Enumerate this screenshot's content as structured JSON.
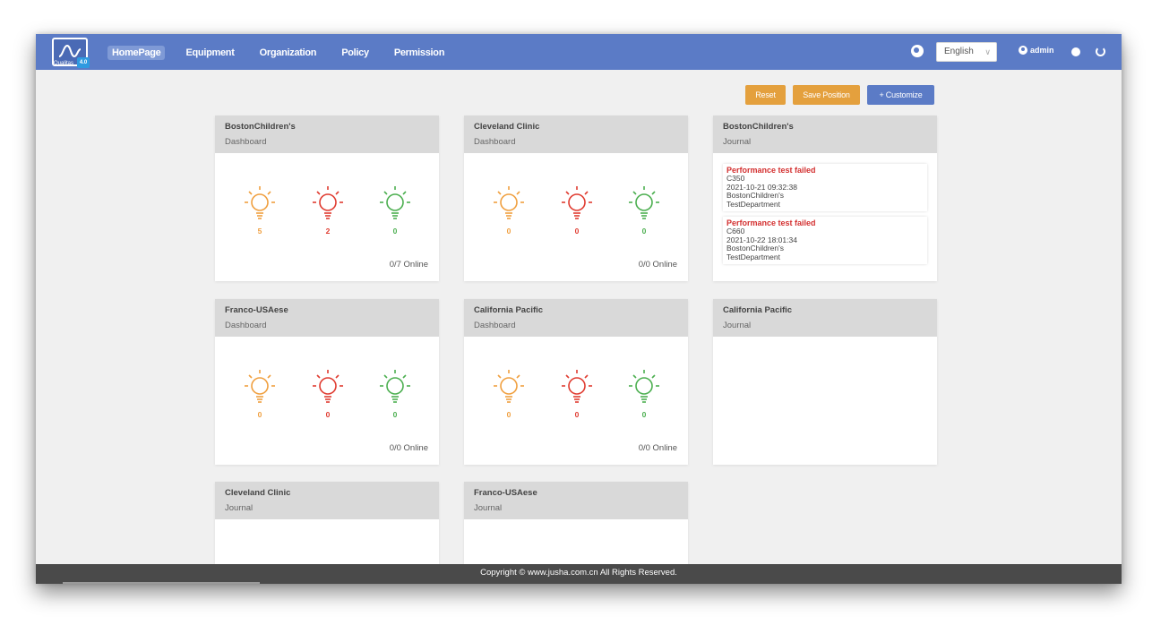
{
  "app": {
    "logo_text": "Qualitas",
    "logo_badge": "4.0"
  },
  "nav": {
    "items": [
      "HomePage",
      "Equipment",
      "Organization",
      "Policy",
      "Permission"
    ],
    "active_index": 0
  },
  "header": {
    "language": "English",
    "user": "admin",
    "icons": [
      "globe-icon",
      "user-icon",
      "gear-icon",
      "power-icon"
    ]
  },
  "toolbar": {
    "reset": "Reset",
    "save_position": "Save Position",
    "customize": "+ Customize"
  },
  "colors": {
    "brand": "#5b7bc6",
    "warning": "#e4a03d",
    "bulb_orange": "#f0a040",
    "bulb_red": "#e03c31",
    "bulb_green": "#4caf50",
    "journal_alert": "#d32f2f"
  },
  "cards": {
    "c1": {
      "title": "BostonChildren's",
      "sub": "Dashboard",
      "counts": [
        "5",
        "2",
        "0"
      ],
      "online": "0/7 Online"
    },
    "c2": {
      "title": "Cleveland Clinic",
      "sub": "Dashboard",
      "counts": [
        "0",
        "0",
        "0"
      ],
      "online": "0/0 Online"
    },
    "c3": {
      "title": "BostonChildren's",
      "sub": "Journal",
      "entries": [
        {
          "title": "Performance test failed",
          "device": "C350",
          "time": "2021-10-21 09:32:38",
          "org": "BostonChildren's",
          "dept": "TestDepartment"
        },
        {
          "title": "Performance test failed",
          "device": "C660",
          "time": "2021-10-22 18:01:34",
          "org": "BostonChildren's",
          "dept": "TestDepartment"
        }
      ]
    },
    "c4": {
      "title": "Franco-USAese",
      "sub": "Dashboard",
      "counts": [
        "0",
        "0",
        "0"
      ],
      "online": "0/0 Online"
    },
    "c5": {
      "title": "California Pacific",
      "sub": "Dashboard",
      "counts": [
        "0",
        "0",
        "0"
      ],
      "online": "0/0 Online"
    },
    "c6": {
      "title": "California Pacific",
      "sub": "Journal"
    },
    "c7": {
      "title": "Cleveland Clinic",
      "sub": "Journal"
    },
    "c8": {
      "title": "Franco-USAese",
      "sub": "Journal"
    }
  },
  "footer": {
    "copyright": "Copyright © www.jusha.com.cn All Rights Reserved."
  }
}
